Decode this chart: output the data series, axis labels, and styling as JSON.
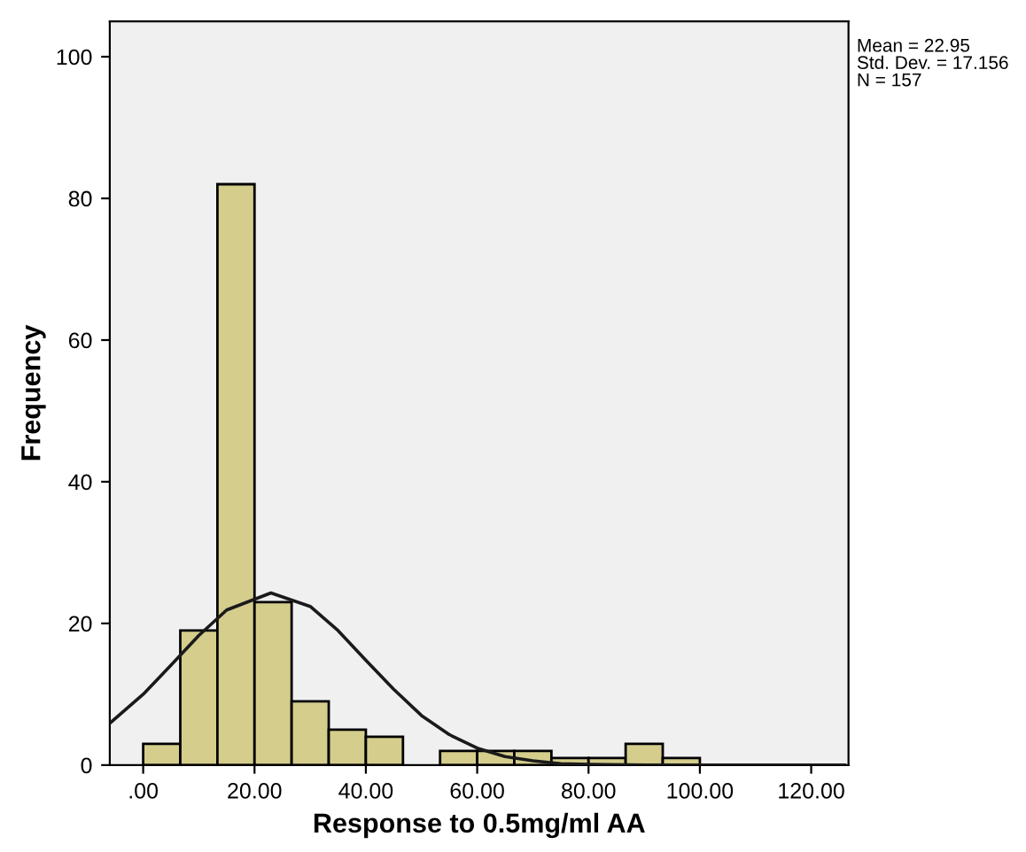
{
  "chart_data": {
    "type": "histogram",
    "xlabel": "Response to 0.5mg/ml AA",
    "ylabel": "Frequency",
    "bins": [
      0,
      6.667,
      13.333,
      20,
      26.667,
      33.333,
      40,
      46.667,
      53.333,
      60,
      66.667,
      73.333,
      80,
      86.667,
      93.333,
      100
    ],
    "values": [
      3,
      19,
      82,
      23,
      9,
      5,
      4,
      0,
      2,
      2,
      2,
      1,
      1,
      3,
      1
    ],
    "color": "#d4cd8c",
    "series": [
      {
        "type": "line",
        "color": "#1a1a1a",
        "x": [
          -6,
          0,
          5,
          10,
          15,
          22.95,
          30,
          35,
          40,
          45,
          50,
          55,
          60,
          65,
          70,
          75,
          80,
          90,
          100,
          126
        ],
        "values": [
          5.9,
          10.0,
          14.1,
          18.3,
          21.9,
          24.3,
          22.4,
          19.0,
          14.8,
          10.7,
          7.0,
          4.3,
          2.4,
          1.2,
          0.6,
          0.2,
          0.1,
          0,
          0,
          0
        ]
      }
    ],
    "xlim": [
      -6,
      126.7
    ],
    "ylim": [
      0,
      105
    ],
    "xticks": [
      {
        "value": 0,
        "label": ".00"
      },
      {
        "value": 20,
        "label": "20.00"
      },
      {
        "value": 40,
        "label": "40.00"
      },
      {
        "value": 60,
        "label": "60.00"
      },
      {
        "value": 80,
        "label": "80.00"
      },
      {
        "value": 100,
        "label": "100.00"
      },
      {
        "value": 120,
        "label": "120.00"
      }
    ],
    "yticks": [
      0,
      20,
      40,
      60,
      80,
      100
    ],
    "grid": false,
    "legend": false,
    "annotations": [
      "Mean = 22.95\nStd. Dev. = 17.156\nN = 157"
    ]
  }
}
